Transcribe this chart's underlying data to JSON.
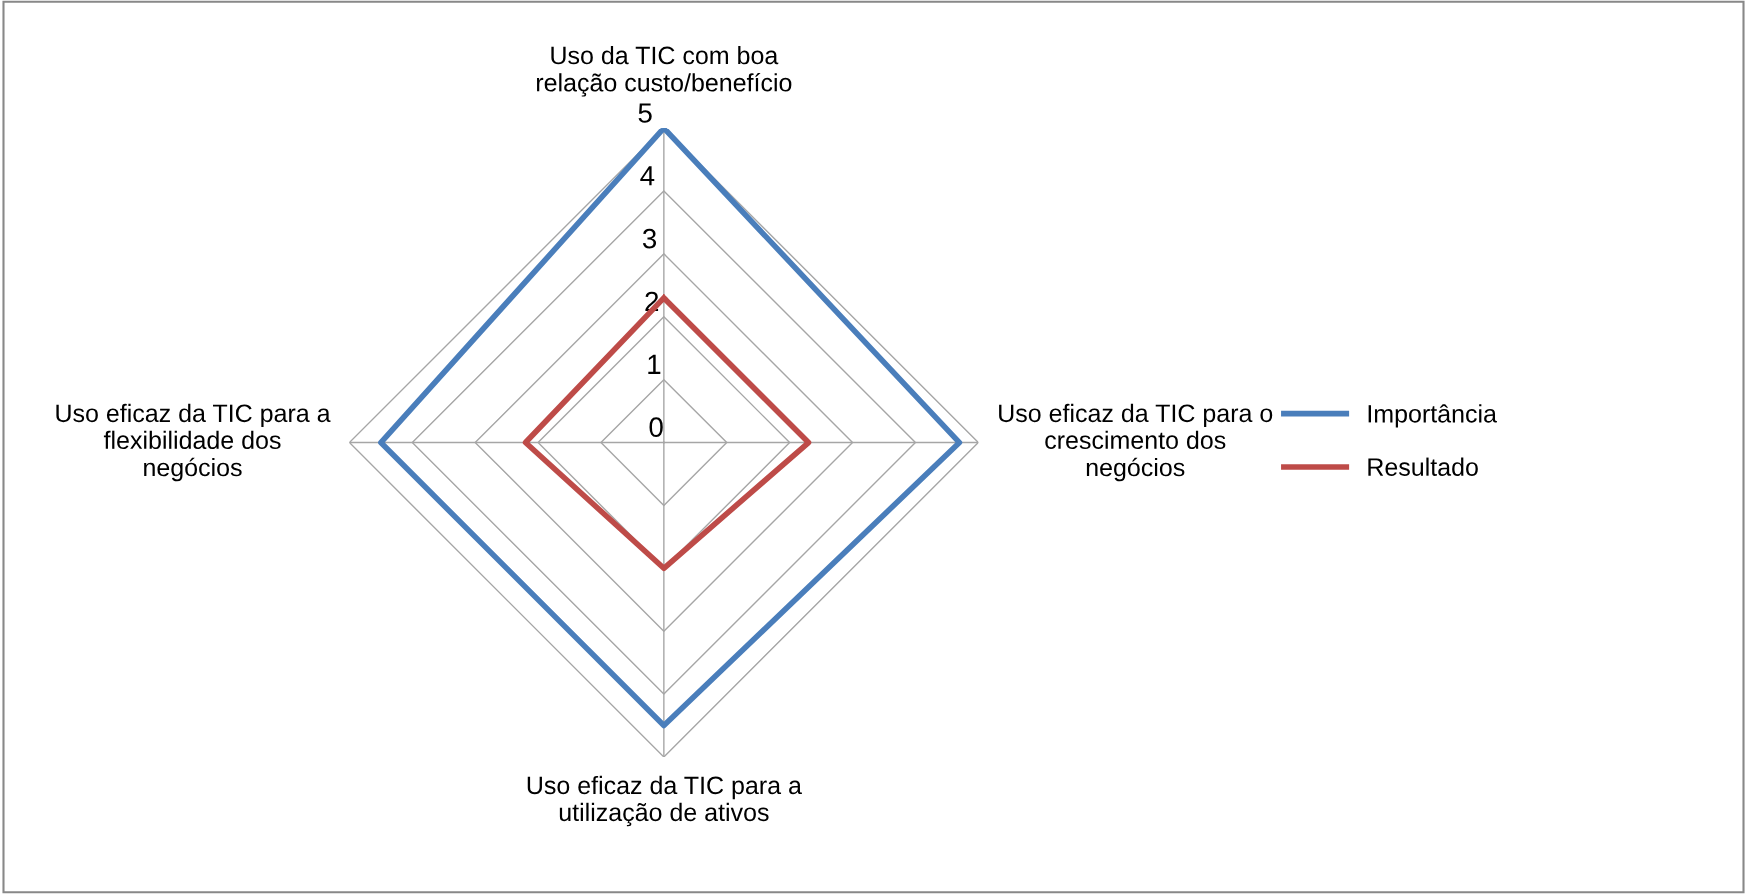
{
  "chart_data": {
    "type": "radar",
    "categories": [
      "Uso da TIC com boa\nrelação custo/benefício",
      "Uso eficaz da TIC para o\ncrescimento dos\nnegócios",
      "Uso eficaz da TIC para a\nutilização de ativos",
      "Uso eficaz da TIC para a\nflexibilidade dos\nnegócios"
    ],
    "series": [
      {
        "name": "Importância",
        "color": "#4a7ebb",
        "values": [
          5,
          4.7,
          4.5,
          4.5
        ]
      },
      {
        "name": "Resultado",
        "color": "#be4b48",
        "values": [
          2.3,
          2.3,
          2.0,
          2.2
        ]
      }
    ],
    "ylim": [
      0,
      5
    ],
    "yticks": [
      0,
      1,
      2,
      3,
      4,
      5
    ],
    "grid": true,
    "legend": "right"
  }
}
